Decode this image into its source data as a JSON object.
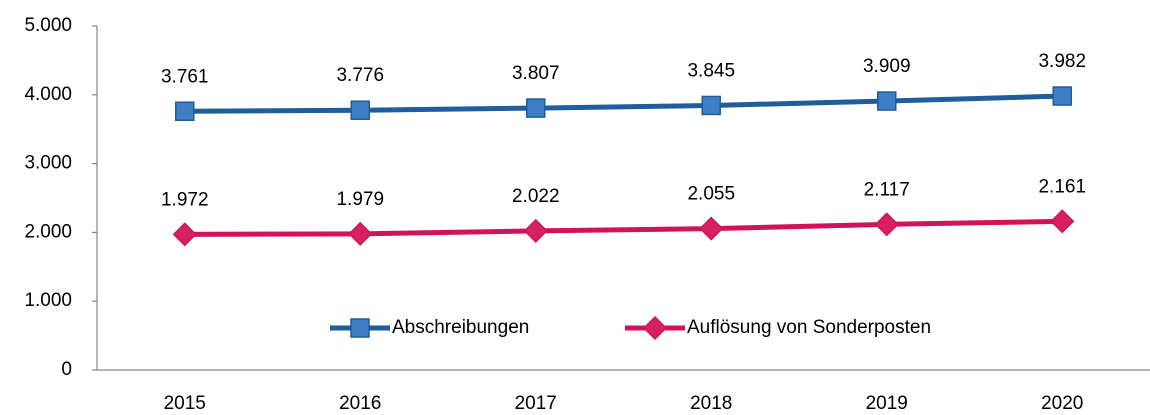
{
  "chart_data": {
    "type": "line",
    "categories": [
      "2015",
      "2016",
      "2017",
      "2018",
      "2019",
      "2020"
    ],
    "series": [
      {
        "name": "Abschreibungen",
        "color": "#1f5d9c",
        "marker": "square",
        "marker_color": "#3d7fc4",
        "values": [
          3761,
          3776,
          3807,
          3845,
          3909,
          3982
        ],
        "value_labels": [
          "3.761",
          "3.776",
          "3.807",
          "3.845",
          "3.909",
          "3.982"
        ]
      },
      {
        "name": "Auflösung von Sonderposten",
        "color": "#d0145a",
        "marker": "diamond",
        "marker_color": "#d62062",
        "values": [
          1972,
          1979,
          2022,
          2055,
          2117,
          2161
        ],
        "value_labels": [
          "1.972",
          "1.979",
          "2.022",
          "2.055",
          "2.117",
          "2.161"
        ]
      }
    ],
    "ylim": [
      0,
      5000
    ],
    "yticks": [
      0,
      {
        "value": 1000,
        "label": "1.000"
      },
      {
        "value": 2000,
        "label": "2.000"
      },
      {
        "value": 3000,
        "label": "3.000"
      },
      {
        "value": 4000,
        "label": "4.000"
      },
      {
        "value": 5000,
        "label": "5.000"
      }
    ],
    "grid": false,
    "legend": "inside-bottom"
  }
}
